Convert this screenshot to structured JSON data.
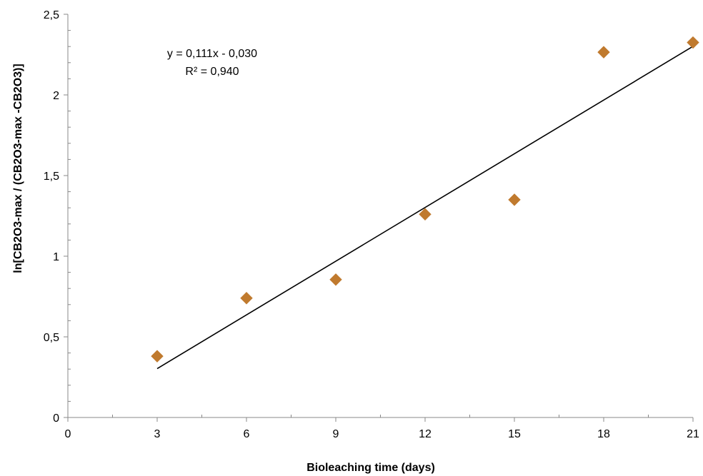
{
  "chart_data": {
    "type": "scatter",
    "xlabel": "Bioleaching time (days)",
    "ylabel": "ln[CB2O3-max / (CB2O3-max -CB2O3)]",
    "xlim": [
      0,
      21
    ],
    "ylim": [
      0,
      2.5
    ],
    "x_ticks": [
      0,
      3,
      6,
      9,
      12,
      15,
      18,
      21
    ],
    "x_tick_labels": [
      "0",
      "3",
      "6",
      "9",
      "12",
      "15",
      "18",
      "21"
    ],
    "y_ticks": [
      0,
      0.5,
      1,
      1.5,
      2,
      2.5
    ],
    "y_tick_labels": [
      "0",
      "0,5",
      "1",
      "1,5",
      "2",
      "2,5"
    ],
    "grid": false,
    "series": [
      {
        "x": [
          3,
          6,
          9,
          12,
          15,
          18,
          21
        ],
        "y": [
          0.38,
          0.74,
          0.855,
          1.26,
          1.35,
          2.265,
          2.325
        ],
        "marker": "diamond",
        "color": "#C07A2E"
      }
    ],
    "trendline": {
      "slope": 0.111,
      "intercept": -0.03,
      "x_range": [
        3,
        21
      ],
      "color": "#000000"
    },
    "annotations": {
      "equation": "y = 0,111x - 0,030",
      "r_squared": "R² = 0,940"
    }
  }
}
